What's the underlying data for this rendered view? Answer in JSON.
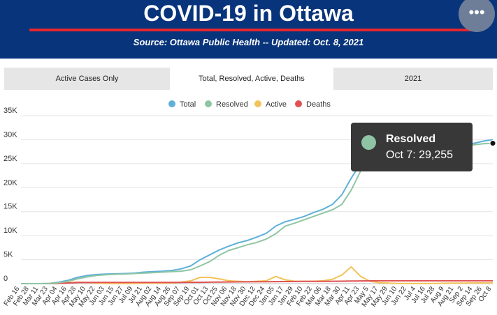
{
  "header": {
    "title": "COVID-19 in Ottawa",
    "source": "Source:  Ottawa Public Health -- Updated:  Oct. 8, 2021",
    "menu_icon": "more-horizontal-icon"
  },
  "tabs": [
    {
      "label": "Active Cases Only"
    },
    {
      "label": "Total, Resolved, Active, Deaths"
    },
    {
      "label": "2021"
    }
  ],
  "active_tab": 1,
  "tooltip": {
    "series": "Resolved",
    "text": "Oct 7: 29,255",
    "color": "#8fc5a4"
  },
  "chart_data": {
    "type": "line",
    "ylim": [
      0,
      35000
    ],
    "yticks": [
      0,
      5000,
      10000,
      15000,
      20000,
      25000,
      30000,
      35000
    ],
    "ytick_labels": [
      "0",
      "5K",
      "10K",
      "15K",
      "20K",
      "25K",
      "30K",
      "35K"
    ],
    "x_tick_labels": [
      "Feb 16",
      "Feb 28",
      "Mar 11",
      "Mar 23",
      "Apr 04",
      "Apr 16",
      "Apr 28",
      "May 10",
      "May 22",
      "Jun 03",
      "Jun 15",
      "Jun 27",
      "Jul 09",
      "Jul 21",
      "Aug 02",
      "Aug 14",
      "Aug 26",
      "Sep 07",
      "Sep 19",
      "Oct 01",
      "Oct 13",
      "Oct 25",
      "Nov 06",
      "Nov 18",
      "Nov 30",
      "Dec 12",
      "Dec 24",
      "Jan 05",
      "Jan 17",
      "Jan 29",
      "Feb 10",
      "Feb 22",
      "Mar 06",
      "Mar 18",
      "Mar 30",
      "Apr 11",
      "Apr 23",
      "May 5",
      "May 17",
      "May 29",
      "Jun 10",
      "Jun 22",
      "Jul 4",
      "Jul 16",
      "Jul 28",
      "Aug 9",
      "Aug 21",
      "Sep 2",
      "Sep 14",
      "Sep 26",
      "Oct 8"
    ],
    "grid": true,
    "legend_position": "top-center",
    "series": [
      {
        "name": "Total",
        "color": "#5fb0d9",
        "values": [
          0,
          0,
          0,
          50,
          300,
          700,
          1300,
          1700,
          1900,
          2000,
          2050,
          2100,
          2200,
          2400,
          2500,
          2600,
          2750,
          3100,
          3700,
          5000,
          6000,
          7000,
          7800,
          8500,
          9000,
          9700,
          10500,
          12000,
          12900,
          13400,
          14000,
          14800,
          15500,
          16500,
          18500,
          22000,
          25000,
          27000,
          27600,
          27900,
          28100,
          28250,
          28350,
          28450,
          28550,
          28700,
          28850,
          29000,
          29250,
          29700,
          30000
        ]
      },
      {
        "name": "Resolved",
        "color": "#8fc5a4",
        "values": [
          0,
          0,
          0,
          30,
          200,
          500,
          1000,
          1400,
          1700,
          1850,
          1950,
          2000,
          2100,
          2200,
          2300,
          2400,
          2500,
          2600,
          2900,
          3700,
          4600,
          5900,
          6900,
          7500,
          8100,
          8600,
          9300,
          10400,
          12000,
          12600,
          13300,
          14000,
          14700,
          15400,
          16500,
          19500,
          23500,
          26000,
          27100,
          27600,
          27900,
          28100,
          28250,
          28350,
          28450,
          28550,
          28650,
          28800,
          28950,
          29150,
          29255
        ]
      },
      {
        "name": "Active",
        "color": "#f2c35b",
        "values": [
          0,
          0,
          0,
          30,
          80,
          200,
          300,
          250,
          100,
          50,
          20,
          20,
          50,
          80,
          100,
          120,
          150,
          300,
          600,
          1300,
          1300,
          1000,
          600,
          500,
          400,
          500,
          600,
          1500,
          800,
          500,
          500,
          500,
          600,
          900,
          1800,
          3500,
          1500,
          500,
          200,
          100,
          50,
          50,
          50,
          50,
          50,
          80,
          100,
          100,
          150,
          150,
          150
        ]
      },
      {
        "name": "Deaths",
        "color": "#e05152",
        "values": [
          0,
          0,
          0,
          5,
          60,
          150,
          230,
          250,
          255,
          258,
          260,
          262,
          263,
          264,
          265,
          265,
          266,
          268,
          270,
          280,
          300,
          330,
          350,
          360,
          380,
          390,
          400,
          420,
          440,
          450,
          460,
          470,
          480,
          500,
          510,
          540,
          570,
          580,
          590,
          590,
          592,
          593,
          593,
          594,
          594,
          595,
          596,
          597,
          598,
          599,
          600
        ]
      }
    ]
  }
}
